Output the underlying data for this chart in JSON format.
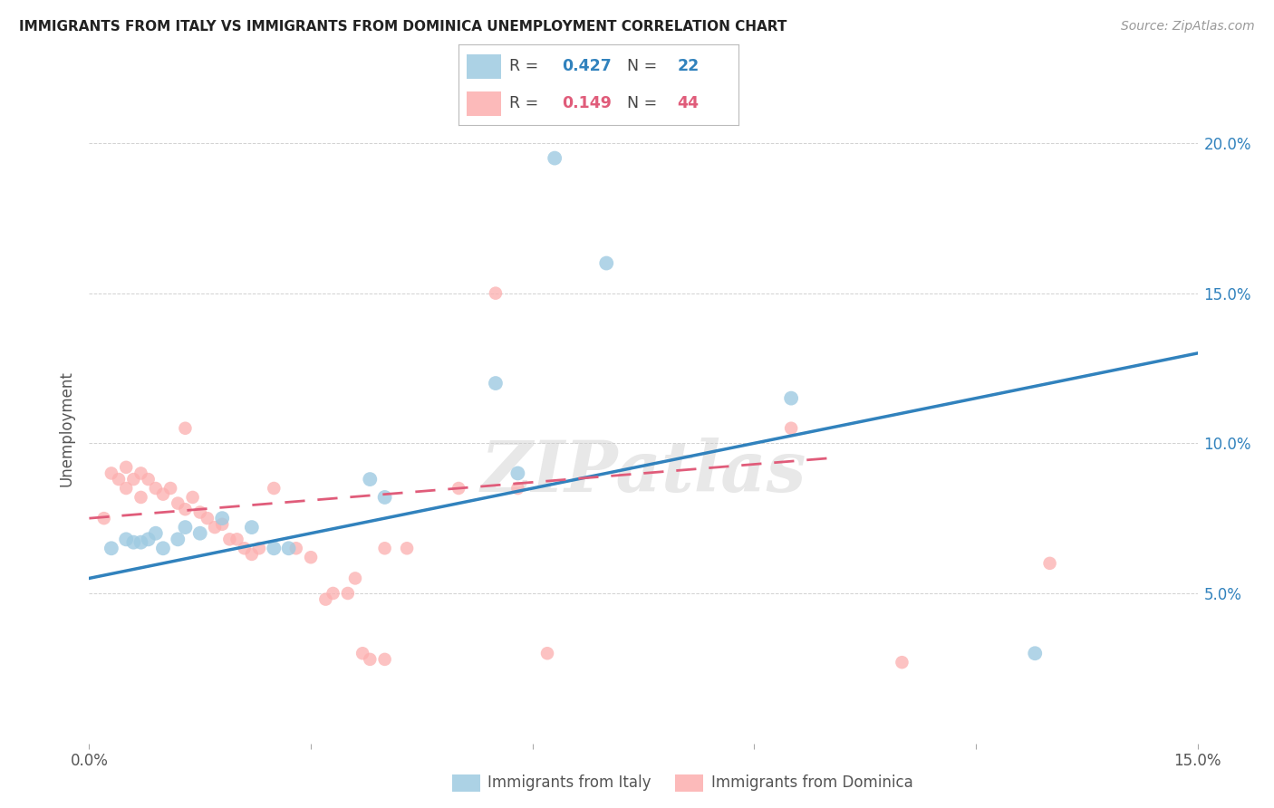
{
  "title": "IMMIGRANTS FROM ITALY VS IMMIGRANTS FROM DOMINICA UNEMPLOYMENT CORRELATION CHART",
  "source": "Source: ZipAtlas.com",
  "xlabel_italy": "Immigrants from Italy",
  "xlabel_dominica": "Immigrants from Dominica",
  "ylabel": "Unemployment",
  "xlim": [
    0.0,
    0.15
  ],
  "ylim": [
    0.0,
    0.21
  ],
  "legend_italy_R": "0.427",
  "legend_italy_N": "22",
  "legend_dominica_R": "0.149",
  "legend_dominica_N": "44",
  "italy_color": "#9ecae1",
  "dominica_color": "#fcaeae",
  "italy_line_color": "#3182bd",
  "dominica_line_color": "#e05c7a",
  "italy_points": [
    [
      0.003,
      0.065
    ],
    [
      0.005,
      0.068
    ],
    [
      0.006,
      0.067
    ],
    [
      0.007,
      0.067
    ],
    [
      0.008,
      0.068
    ],
    [
      0.009,
      0.07
    ],
    [
      0.01,
      0.065
    ],
    [
      0.012,
      0.068
    ],
    [
      0.013,
      0.072
    ],
    [
      0.015,
      0.07
    ],
    [
      0.018,
      0.075
    ],
    [
      0.022,
      0.072
    ],
    [
      0.025,
      0.065
    ],
    [
      0.027,
      0.065
    ],
    [
      0.038,
      0.088
    ],
    [
      0.04,
      0.082
    ],
    [
      0.055,
      0.12
    ],
    [
      0.058,
      0.09
    ],
    [
      0.063,
      0.195
    ],
    [
      0.07,
      0.16
    ],
    [
      0.095,
      0.115
    ],
    [
      0.128,
      0.03
    ]
  ],
  "dominica_points": [
    [
      0.002,
      0.075
    ],
    [
      0.003,
      0.09
    ],
    [
      0.004,
      0.088
    ],
    [
      0.005,
      0.092
    ],
    [
      0.005,
      0.085
    ],
    [
      0.006,
      0.088
    ],
    [
      0.007,
      0.09
    ],
    [
      0.007,
      0.082
    ],
    [
      0.008,
      0.088
    ],
    [
      0.009,
      0.085
    ],
    [
      0.01,
      0.083
    ],
    [
      0.011,
      0.085
    ],
    [
      0.012,
      0.08
    ],
    [
      0.013,
      0.078
    ],
    [
      0.014,
      0.082
    ],
    [
      0.015,
      0.077
    ],
    [
      0.016,
      0.075
    ],
    [
      0.017,
      0.072
    ],
    [
      0.018,
      0.073
    ],
    [
      0.019,
      0.068
    ],
    [
      0.02,
      0.068
    ],
    [
      0.021,
      0.065
    ],
    [
      0.022,
      0.063
    ],
    [
      0.023,
      0.065
    ],
    [
      0.025,
      0.085
    ],
    [
      0.028,
      0.065
    ],
    [
      0.03,
      0.062
    ],
    [
      0.032,
      0.048
    ],
    [
      0.033,
      0.05
    ],
    [
      0.035,
      0.05
    ],
    [
      0.036,
      0.055
    ],
    [
      0.037,
      0.03
    ],
    [
      0.038,
      0.028
    ],
    [
      0.04,
      0.028
    ],
    [
      0.013,
      0.105
    ],
    [
      0.04,
      0.065
    ],
    [
      0.043,
      0.065
    ],
    [
      0.05,
      0.085
    ],
    [
      0.055,
      0.15
    ],
    [
      0.058,
      0.085
    ],
    [
      0.062,
      0.03
    ],
    [
      0.095,
      0.105
    ],
    [
      0.11,
      0.027
    ],
    [
      0.13,
      0.06
    ]
  ],
  "italy_point_size": 130,
  "dominica_point_size": 110,
  "background_color": "#ffffff",
  "grid_color": "#cccccc",
  "watermark": "ZIPatlas"
}
